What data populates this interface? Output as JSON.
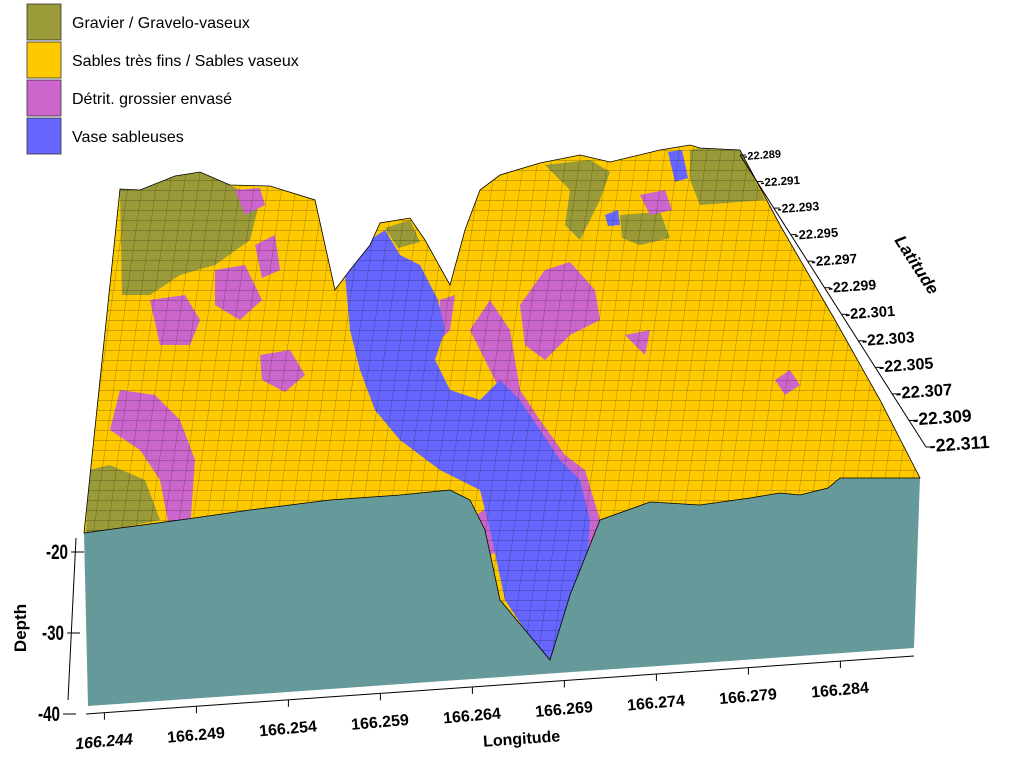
{
  "chart_data": {
    "type": "3d-surface",
    "title": "",
    "legend": {
      "placement": "top-left",
      "items": [
        {
          "label": "Gravier / Gravelo-vaseux",
          "color": "#9a9a38"
        },
        {
          "label": "Sables très fins / Sables vaseux",
          "color": "#ffc900"
        },
        {
          "label": "Détrit. grossier envasé",
          "color": "#cc66cc"
        },
        {
          "label": "Vase sableuses",
          "color": "#6666ff"
        }
      ]
    },
    "x_axis": {
      "label": "Longitude",
      "ticks": [
        "166.244",
        "166.249",
        "166.254",
        "166.259",
        "166.264",
        "166.269",
        "166.274",
        "166.279",
        "166.284"
      ],
      "range": [
        166.243,
        166.288
      ]
    },
    "y_axis": {
      "label": "Latitude",
      "ticks": [
        "-22.289",
        "-22.291",
        "-22.293",
        "-22.295",
        "-22.297",
        "-22.299",
        "-22.301",
        "-22.303",
        "-22.305",
        "-22.307",
        "-22.309",
        "-22.311"
      ],
      "range": [
        -22.311,
        -22.289
      ]
    },
    "z_axis": {
      "label": "Depth",
      "ticks": [
        "-20",
        "-30",
        "-40"
      ],
      "range": [
        -40,
        -20
      ]
    },
    "side_wall_color": "#669999",
    "grid_lines": true
  }
}
